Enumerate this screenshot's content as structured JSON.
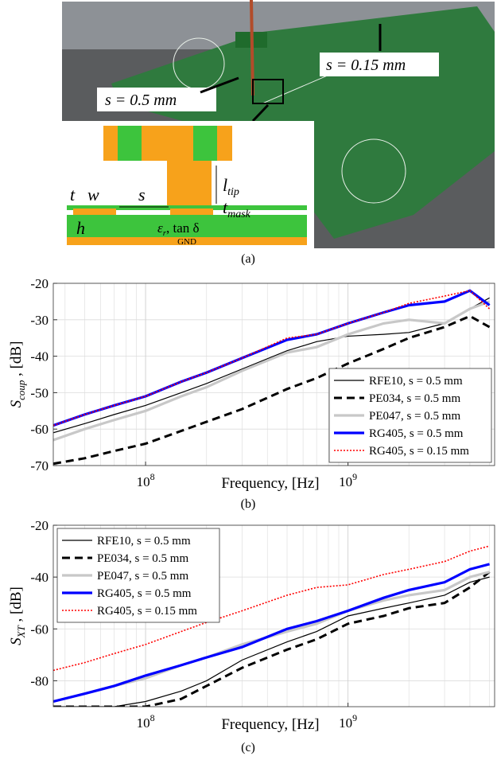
{
  "figure": {
    "photo_labels": [
      "s = 0.5 mm",
      "s = 0.15 mm"
    ],
    "diagram": {
      "t": "t",
      "w": "w",
      "s": "s",
      "h": "h",
      "l_tip": {
        "base": "l",
        "sub": "tip"
      },
      "t_mask": {
        "base": "t",
        "sub": "mask"
      },
      "eps": {
        "base": "ε",
        "sub": "r"
      },
      "loss": ", tan δ",
      "gnd": "GND"
    },
    "captions": [
      "(a)",
      "(b)",
      "(c)"
    ]
  },
  "chart_data": [
    {
      "type": "line",
      "xlabel": "Frequency, [Hz]",
      "ylabel": {
        "main": "S",
        "sub": "coup",
        "unit": " , [dB]"
      },
      "log_x": true,
      "grid": true,
      "legend": "lower right",
      "x": [
        35000000,
        50000000,
        70000000,
        100000000,
        150000000,
        200000000,
        300000000,
        500000000,
        700000000,
        1000000000,
        1500000000,
        2000000000,
        3000000000,
        4000000000,
        5000000000
      ],
      "xlim": [
        35000000,
        5300000000
      ],
      "xticks": [
        {
          "value": 100000000,
          "label": "10^8"
        },
        {
          "value": 1000000000,
          "label": "10^9"
        }
      ],
      "xminorticks": [
        40000000,
        50000000,
        60000000,
        70000000,
        80000000,
        90000000,
        200000000,
        300000000,
        400000000,
        500000000,
        600000000,
        700000000,
        800000000,
        900000000,
        2000000000,
        3000000000,
        4000000000,
        5000000000
      ],
      "ylim": [
        -70,
        -20
      ],
      "yticks": [
        -70,
        -60,
        -50,
        -40,
        -30,
        -20
      ],
      "series": [
        {
          "name": "RFE10, s = 0.5 mm",
          "color": "#000000",
          "style": "thin",
          "values": [
            -61,
            -58.5,
            -56,
            -53.5,
            -50,
            -47.5,
            -43.5,
            -38.5,
            -36,
            -34.5,
            -34,
            -33.5,
            -31,
            -27,
            -24
          ]
        },
        {
          "name": "PE034, s = 0.5 mm",
          "color": "#000000",
          "style": "dashed",
          "values": [
            -69.5,
            -68,
            -66,
            -64,
            -60.5,
            -58,
            -54.5,
            -49,
            -46,
            -42,
            -38,
            -35,
            -32,
            -29,
            -32
          ]
        },
        {
          "name": "PE047, s = 0.5 mm",
          "color": "#c8c8c8",
          "style": "thick",
          "values": [
            -63,
            -60,
            -57.5,
            -55,
            -51,
            -48.5,
            -44,
            -39,
            -37.5,
            -34,
            -31,
            -30,
            -31,
            -27,
            -25
          ]
        },
        {
          "name": "RG405, s = 0.5 mm",
          "color": "#0000ff",
          "style": "thick",
          "values": [
            -59,
            -56,
            -53.5,
            -51,
            -47,
            -44.5,
            -40.5,
            -35.5,
            -34,
            -31,
            -28,
            -26,
            -25,
            -22,
            -26
          ]
        },
        {
          "name": "RG405, s = 0.15 mm",
          "color": "#ff0000",
          "style": "dotted",
          "values": [
            -59,
            -56,
            -53.5,
            -51,
            -47,
            -44.5,
            -40.5,
            -35,
            -34,
            -31,
            -28,
            -25.5,
            -23.5,
            -22,
            -27
          ]
        }
      ]
    },
    {
      "type": "line",
      "xlabel": "Frequency, [Hz]",
      "ylabel": {
        "main": "S",
        "sub": "XT",
        "unit": " , [dB]"
      },
      "log_x": true,
      "grid": true,
      "legend": "upper left",
      "x": [
        35000000,
        50000000,
        70000000,
        100000000,
        150000000,
        200000000,
        300000000,
        500000000,
        700000000,
        1000000000,
        1500000000,
        2000000000,
        3000000000,
        4000000000,
        5000000000
      ],
      "xlim": [
        35000000,
        5300000000
      ],
      "xticks": [
        {
          "value": 100000000,
          "label": "10^8"
        },
        {
          "value": 1000000000,
          "label": "10^9"
        }
      ],
      "xminorticks": [
        40000000,
        50000000,
        60000000,
        70000000,
        80000000,
        90000000,
        200000000,
        300000000,
        400000000,
        500000000,
        600000000,
        700000000,
        800000000,
        900000000,
        2000000000,
        3000000000,
        4000000000,
        5000000000
      ],
      "ylim": [
        -90,
        -20
      ],
      "yticks": [
        -80,
        -60,
        -40,
        -20
      ],
      "series": [
        {
          "name": "RFE10, s = 0.5 mm",
          "color": "#000000",
          "style": "thin",
          "values": [
            -90,
            -90,
            -90,
            -88,
            -84,
            -80,
            -72,
            -65,
            -61,
            -55,
            -52,
            -50,
            -47,
            -42,
            -40
          ]
        },
        {
          "name": "PE034, s = 0.5 mm",
          "color": "#000000",
          "style": "dashed",
          "values": [
            -90,
            -90,
            -90,
            -90,
            -87,
            -82,
            -75,
            -68,
            -64,
            -58,
            -55,
            -52,
            -50,
            -44,
            -38
          ]
        },
        {
          "name": "PE047, s = 0.5 mm",
          "color": "#c8c8c8",
          "style": "thick",
          "values": [
            -88,
            -85,
            -82,
            -79,
            -74,
            -71,
            -66,
            -61,
            -58,
            -53,
            -49,
            -47,
            -45,
            -40,
            -38
          ]
        },
        {
          "name": "RG405, s = 0.5 mm",
          "color": "#0000ff",
          "style": "thick",
          "values": [
            -88,
            -85,
            -82,
            -78,
            -74,
            -71,
            -67,
            -60,
            -57,
            -53,
            -48,
            -45,
            -42,
            -37,
            -35
          ]
        },
        {
          "name": "RG405, s = 0.15 mm",
          "color": "#ff0000",
          "style": "dotted",
          "values": [
            -76,
            -73,
            -69.5,
            -66,
            -61,
            -57.5,
            -53,
            -47,
            -44,
            -43,
            -39,
            -37,
            -34,
            -30,
            -28
          ]
        }
      ]
    }
  ]
}
